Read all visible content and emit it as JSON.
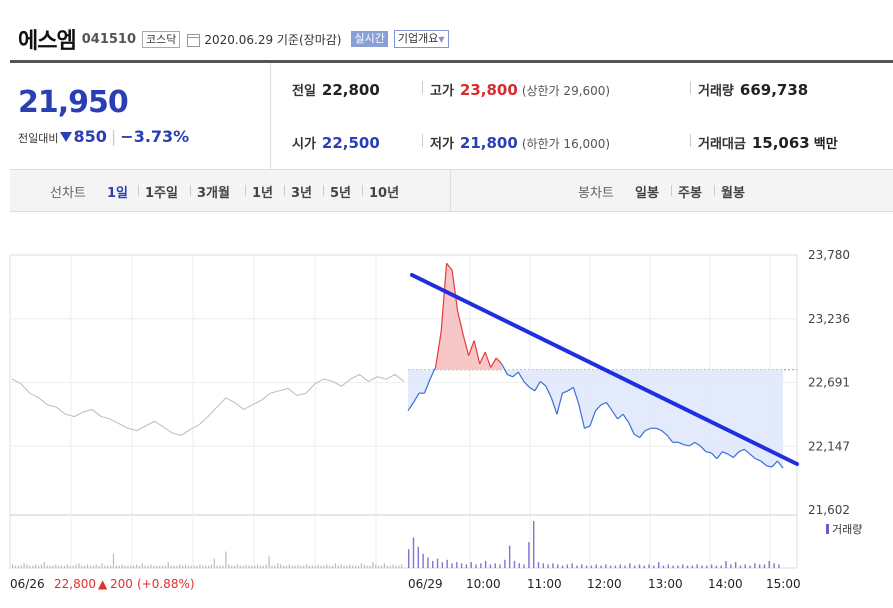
{
  "header": {
    "name": "에스엠",
    "code": "041510",
    "market": "코스닥",
    "date": "2020.06.29 기준(장마감)",
    "realtime_label": "실시간",
    "company_label": "기업개요"
  },
  "summary": {
    "price": "21,950",
    "change_label": "전일대비",
    "change": "850",
    "change_rate": "−3.73%",
    "prev_close_label": "전일",
    "prev_close": "22,800",
    "open_label": "시가",
    "open": "22,500",
    "high_label": "고가",
    "high": "23,800",
    "upper_limit": "(상한가 29,600)",
    "low_label": "저가",
    "low": "21,800",
    "lower_limit": "(하한가 16,000)",
    "volume_label": "거래량",
    "volume": "669,738",
    "amount_label": "거래대금",
    "amount": "15,063",
    "amount_unit": "백만"
  },
  "tabs": {
    "line_label": "선차트",
    "line_items": [
      "1일",
      "1주일",
      "3개월",
      "1년",
      "3년",
      "5년",
      "10년"
    ],
    "active": "1일",
    "candle_label": "봉차트",
    "candle_items": [
      "일봉",
      "주봉",
      "월봉"
    ]
  },
  "chart_data": {
    "type": "line",
    "ylim": [
      21602,
      23780
    ],
    "yticks": [
      "23,780",
      "23,236",
      "22,691",
      "22,147",
      "21,602"
    ],
    "xticks": [
      "06/26",
      "06/29",
      "10:00",
      "11:00",
      "12:00",
      "13:00",
      "14:00",
      "15:00"
    ],
    "prev_day_label": "06/26",
    "prev_day_close": "22,800",
    "prev_day_change": "200",
    "prev_day_rate": "(+0.88%)",
    "volume_legend": "거래량",
    "baseline": 22800,
    "series": [
      {
        "values": [
          22450,
          22520,
          22600,
          22600,
          22720,
          22820,
          23120,
          23710,
          23650,
          23300,
          23100,
          22920,
          23050,
          22850,
          22950,
          22820,
          22900,
          22850,
          22760,
          22740,
          22780,
          22700,
          22650,
          22620,
          22700,
          22660,
          22560,
          22420,
          22600,
          22620,
          22650,
          22500,
          22300,
          22320,
          22450,
          22500,
          22520,
          22450,
          22380,
          22420,
          22350,
          22250,
          22220,
          22280,
          22300,
          22300,
          22280,
          22240,
          22180,
          22180,
          22160,
          22150,
          22180,
          22150,
          22100,
          22090,
          22040,
          22100,
          22080,
          22050,
          22100,
          22120,
          22080,
          22040,
          22020,
          21980,
          21970,
          22020,
          21960
        ]
      },
      {
        "values": [
          22720,
          22680,
          22600,
          22560,
          22500,
          22480,
          22420,
          22400,
          22440,
          22460,
          22400,
          22380,
          22340,
          22300,
          22280,
          22320,
          22360,
          22310,
          22260,
          22240,
          22290,
          22330,
          22400,
          22480,
          22560,
          22520,
          22460,
          22500,
          22540,
          22600,
          22620,
          22640,
          22580,
          22600,
          22680,
          22720,
          22700,
          22660,
          22720,
          22760,
          22700,
          22740,
          22720,
          22760,
          22700
        ]
      }
    ],
    "volume": [
      0.3,
      0.2,
      0.2,
      0.2,
      0.4,
      0.3,
      0.2,
      0.2,
      0.3,
      0.2,
      0.3,
      0.5,
      0.2,
      0.2,
      0.2,
      0.3,
      0.2,
      0.2,
      0.2,
      0.3,
      0.2,
      0.2,
      0.3,
      0.4,
      0.2,
      0.2,
      0.3,
      0.2,
      0.2,
      0.3,
      0.2,
      0.4,
      0.2,
      0.2,
      0.2,
      1.2,
      0.2,
      0.2,
      0.3,
      0.2,
      0.2,
      0.2,
      0.2,
      0.3,
      0.2,
      0.4,
      0.2,
      0.2,
      0.3,
      0.2,
      0.2,
      0.2,
      0.2,
      0.2,
      0.5,
      0.2,
      0.2,
      0.2,
      0.3,
      0.2,
      0.3,
      0.2,
      0.2,
      0.2,
      0.2,
      0.3,
      0.2,
      0.2,
      0.2,
      0.3,
      0.8,
      0.2,
      0.2,
      0.2,
      1.4,
      0.3,
      0.2,
      0.2,
      0.3,
      0.2,
      0.2,
      0.3,
      0.2,
      0.2,
      0.2,
      0.3,
      0.2,
      0.2,
      0.3,
      1.0,
      0.2,
      0.2,
      0.4,
      0.3,
      0.2,
      0.2,
      0.3,
      0.2,
      0.2,
      0.3,
      0.2,
      0.2,
      0.3,
      0.2,
      0.2,
      0.2,
      0.3,
      0.2,
      0.2,
      0.3,
      0.2,
      0.2,
      0.4,
      0.2,
      0.3,
      0.2,
      0.2,
      0.3,
      0.2,
      0.2,
      0.2,
      0.4,
      0.3,
      0.2,
      0.2,
      0.5,
      0.3,
      0.2,
      0.2,
      0.4,
      0.2,
      0.2,
      0.3,
      0.2,
      0.2,
      0.3
    ],
    "volume_today": [
      1.6,
      2.6,
      1.8,
      1.2,
      0.9,
      0.6,
      0.8,
      0.5,
      0.7,
      0.4,
      0.5,
      0.4,
      0.3,
      0.5,
      0.3,
      0.4,
      0.6,
      0.3,
      0.4,
      0.3,
      0.7,
      1.9,
      0.6,
      0.4,
      0.3,
      2.2,
      4.0,
      0.5,
      0.4,
      0.3,
      0.4,
      0.3,
      0.2,
      0.3,
      0.4,
      0.2,
      0.3,
      0.2,
      0.2,
      0.3,
      0.2,
      0.3,
      0.2,
      0.2,
      0.3,
      0.2,
      0.4,
      0.2,
      0.3,
      0.2,
      0.3,
      0.2,
      0.5,
      0.2,
      0.3,
      0.2,
      0.2,
      0.3,
      0.2,
      0.2,
      0.3,
      0.2,
      0.2,
      0.3,
      0.2,
      0.2,
      0.6,
      0.3,
      0.5,
      0.2,
      0.3,
      0.2,
      0.4,
      0.3,
      0.3,
      0.6,
      0.4,
      0.3
    ]
  },
  "colors": {
    "up": "#e63b3b",
    "down": "#2a3fb3",
    "trend": "#1f2fe0"
  }
}
